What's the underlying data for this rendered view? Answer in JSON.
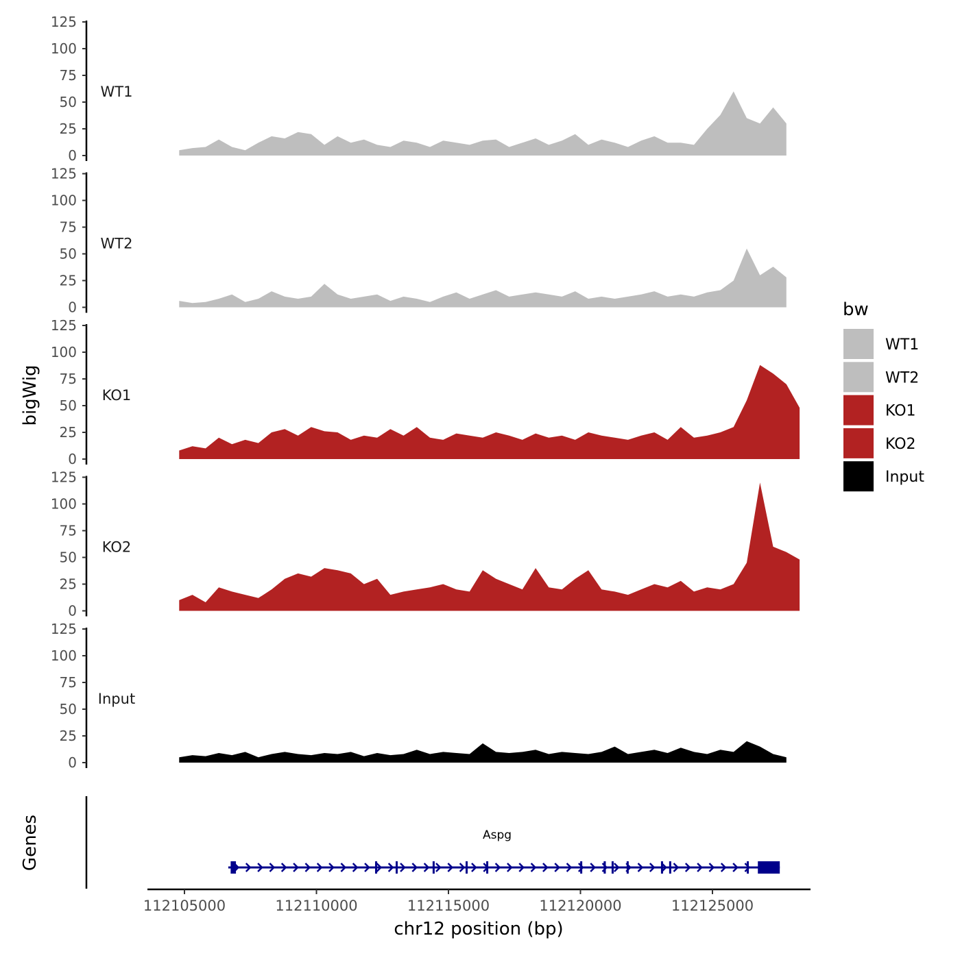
{
  "chart_data": {
    "type": "area",
    "ylabel": "bigWig",
    "xlabel": "chr12 position (bp)",
    "gene_panel_label": "Genes",
    "xlim": [
      112104300,
      112128800
    ],
    "ylim": [
      0,
      125
    ],
    "yticks": [
      0,
      25,
      50,
      75,
      100,
      125
    ],
    "xticks": [
      112105000,
      112110000,
      112115000,
      112120000,
      112125000
    ],
    "x_start": 112104800,
    "x_step": 500,
    "tracks": [
      {
        "name": "WT1",
        "color": "#BEBEBE",
        "values": [
          5,
          7,
          8,
          15,
          8,
          5,
          12,
          18,
          16,
          22,
          20,
          10,
          18,
          12,
          15,
          10,
          8,
          14,
          12,
          8,
          14,
          12,
          10,
          14,
          15,
          8,
          12,
          16,
          10,
          14,
          20,
          10,
          15,
          12,
          8,
          14,
          18,
          12,
          12,
          10,
          25,
          38,
          60,
          35,
          30,
          45,
          30
        ]
      },
      {
        "name": "WT2",
        "color": "#BEBEBE",
        "values": [
          6,
          4,
          5,
          8,
          12,
          5,
          8,
          15,
          10,
          8,
          10,
          22,
          12,
          8,
          10,
          12,
          6,
          10,
          8,
          5,
          10,
          14,
          8,
          12,
          16,
          10,
          12,
          14,
          12,
          10,
          15,
          8,
          10,
          8,
          10,
          12,
          15,
          10,
          12,
          10,
          14,
          16,
          25,
          55,
          30,
          38,
          28
        ]
      },
      {
        "name": "KO1",
        "color": "#B22222",
        "values": [
          8,
          12,
          10,
          20,
          14,
          18,
          15,
          25,
          28,
          22,
          30,
          26,
          25,
          18,
          22,
          20,
          28,
          22,
          30,
          20,
          18,
          24,
          22,
          20,
          25,
          22,
          18,
          24,
          20,
          22,
          18,
          25,
          22,
          20,
          18,
          22,
          25,
          18,
          30,
          20,
          22,
          25,
          30,
          55,
          88,
          80,
          70,
          48
        ]
      },
      {
        "name": "KO2",
        "color": "#B22222",
        "values": [
          10,
          15,
          8,
          22,
          18,
          15,
          12,
          20,
          30,
          35,
          32,
          40,
          38,
          35,
          25,
          30,
          15,
          18,
          20,
          22,
          25,
          20,
          18,
          38,
          30,
          25,
          20,
          40,
          22,
          20,
          30,
          38,
          20,
          18,
          15,
          20,
          25,
          22,
          28,
          18,
          22,
          20,
          25,
          45,
          120,
          60,
          55,
          48
        ]
      },
      {
        "name": "Input",
        "color": "#000000",
        "values": [
          5,
          7,
          6,
          9,
          7,
          10,
          5,
          8,
          10,
          8,
          7,
          9,
          8,
          10,
          6,
          9,
          7,
          8,
          12,
          8,
          10,
          9,
          8,
          18,
          10,
          9,
          10,
          12,
          8,
          10,
          9,
          8,
          10,
          15,
          8,
          10,
          12,
          9,
          14,
          10,
          8,
          12,
          10,
          20,
          15,
          8,
          5
        ]
      }
    ],
    "legend": {
      "title": "bw",
      "position": "right",
      "entries": [
        {
          "label": "WT1",
          "color": "#BEBEBE"
        },
        {
          "label": "WT2",
          "color": "#BEBEBE"
        },
        {
          "label": "KO1",
          "color": "#B22222"
        },
        {
          "label": "KO2",
          "color": "#B22222"
        },
        {
          "label": "Input",
          "color": "#000000"
        }
      ]
    },
    "gene": {
      "name": "Aspg",
      "color": "#00008B",
      "strand": "+",
      "start": 112106660,
      "end": 112127550,
      "exons": [
        [
          112106750,
          112106950
        ],
        [
          112112220,
          112112270
        ],
        [
          112113000,
          112113050
        ],
        [
          112114400,
          112114450
        ],
        [
          112115650,
          112115700
        ],
        [
          112116430,
          112116480
        ],
        [
          112119990,
          112120040
        ],
        [
          112120880,
          112120960
        ],
        [
          112121180,
          112121230
        ],
        [
          112121750,
          112121800
        ],
        [
          112123050,
          112123100
        ],
        [
          112123360,
          112123420
        ],
        [
          112126300,
          112126350
        ],
        [
          112126720,
          112127550
        ]
      ]
    }
  }
}
